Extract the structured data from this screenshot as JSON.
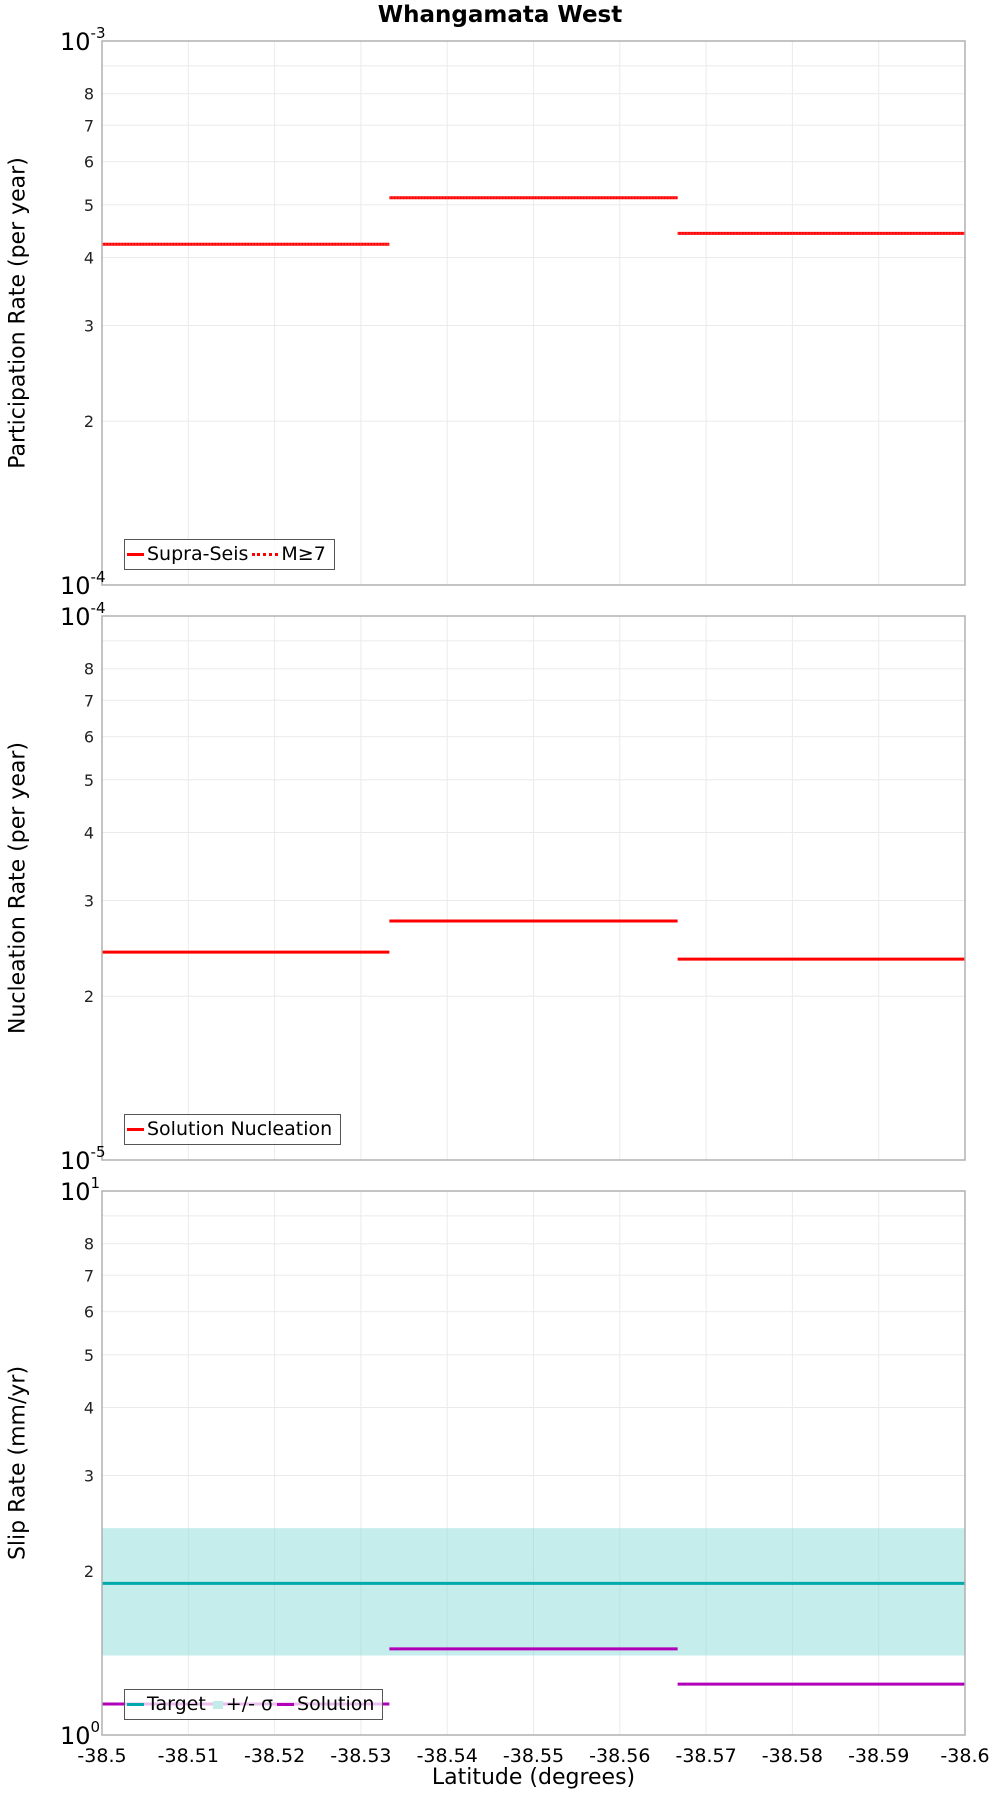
{
  "title": "Whangamata West",
  "xlabel": "Latitude (degrees)",
  "x_ticks": [
    "-38.5",
    "-38.51",
    "-38.52",
    "-38.53",
    "-38.54",
    "-38.55",
    "-38.56",
    "-38.57",
    "-38.58",
    "-38.59",
    "-38.6"
  ],
  "panels": [
    {
      "ylabel": "Participation Rate (per year)",
      "top_label": {
        "base": "10",
        "exp": "-3"
      },
      "bottom_label": {
        "base": "10",
        "exp": "-4"
      },
      "minor_labels": [
        "8",
        "7",
        "6",
        "5",
        "4",
        "3",
        "2"
      ],
      "legend": [
        {
          "label": "Supra-Seis",
          "style": "solid",
          "color": "#ff0000"
        },
        {
          "label": "M≥7",
          "style": "dotted",
          "color": "#ff0000"
        }
      ]
    },
    {
      "ylabel": "Nucleation Rate (per year)",
      "top_label": {
        "base": "10",
        "exp": "-4"
      },
      "bottom_label": {
        "base": "10",
        "exp": "-5"
      },
      "minor_labels": [
        "8",
        "7",
        "6",
        "5",
        "4",
        "3",
        "2"
      ],
      "legend": [
        {
          "label": "Solution Nucleation",
          "style": "solid",
          "color": "#ff0000"
        }
      ]
    },
    {
      "ylabel": "Slip Rate (mm/yr)",
      "top_label": {
        "base": "10",
        "exp": "1"
      },
      "bottom_label": {
        "base": "10",
        "exp": "0"
      },
      "minor_labels": [
        "8",
        "7",
        "6",
        "5",
        "4",
        "3",
        "2"
      ],
      "legend": [
        {
          "label": "Target",
          "style": "solid",
          "color": "#00aaaa"
        },
        {
          "label": "+/- σ",
          "style": "band",
          "color": "#c2ecea"
        },
        {
          "label": "Solution",
          "style": "solid",
          "color": "#b000b8"
        }
      ]
    }
  ],
  "chart_data": [
    {
      "type": "line",
      "title": "Whangamata West",
      "xlabel": "Latitude (degrees)",
      "ylabel": "Participation Rate (per year)",
      "yscale": "log",
      "xlim": [
        -38.5,
        -38.6
      ],
      "ylim": [
        0.0001,
        0.001
      ],
      "grid": true,
      "legend_position": "lower left",
      "series": [
        {
          "name": "Supra-Seis",
          "style": "solid",
          "color": "#ff0000",
          "segments": [
            {
              "x": [
                -38.5,
                -38.5333
              ],
              "y": 0.000423
            },
            {
              "x": [
                -38.5333,
                -38.5667
              ],
              "y": 0.000515
            },
            {
              "x": [
                -38.5667,
                -38.6
              ],
              "y": 0.000443
            }
          ]
        },
        {
          "name": "M≥7",
          "style": "dotted",
          "color": "#ff0000",
          "segments": [
            {
              "x": [
                -38.5,
                -38.5333
              ],
              "y": 0.000423
            },
            {
              "x": [
                -38.5333,
                -38.5667
              ],
              "y": 0.000515
            },
            {
              "x": [
                -38.5667,
                -38.6
              ],
              "y": 0.000443
            }
          ]
        }
      ]
    },
    {
      "type": "line",
      "xlabel": "Latitude (degrees)",
      "ylabel": "Nucleation Rate (per year)",
      "yscale": "log",
      "xlim": [
        -38.5,
        -38.6
      ],
      "ylim": [
        1e-05,
        0.0001
      ],
      "grid": true,
      "legend_position": "lower left",
      "series": [
        {
          "name": "Solution Nucleation",
          "style": "solid",
          "color": "#ff0000",
          "segments": [
            {
              "x": [
                -38.5,
                -38.5333
              ],
              "y": 2.41e-05
            },
            {
              "x": [
                -38.5333,
                -38.5667
              ],
              "y": 2.75e-05
            },
            {
              "x": [
                -38.5667,
                -38.6
              ],
              "y": 2.34e-05
            }
          ]
        }
      ]
    },
    {
      "type": "line",
      "xlabel": "Latitude (degrees)",
      "ylabel": "Slip Rate (mm/yr)",
      "yscale": "log",
      "xlim": [
        -38.5,
        -38.6
      ],
      "ylim": [
        1,
        10
      ],
      "grid": true,
      "legend_position": "lower left",
      "band": {
        "name": "+/- σ",
        "color": "#c2ecea",
        "x": [
          -38.5,
          -38.6
        ],
        "y_low": 1.4,
        "y_high": 2.4
      },
      "series": [
        {
          "name": "Target",
          "style": "solid",
          "color": "#00aaaa",
          "segments": [
            {
              "x": [
                -38.5,
                -38.6
              ],
              "y": 1.9
            }
          ]
        },
        {
          "name": "Solution",
          "style": "solid",
          "color": "#b000b8",
          "segments": [
            {
              "x": [
                -38.5,
                -38.5333
              ],
              "y": 1.14
            },
            {
              "x": [
                -38.5333,
                -38.5667
              ],
              "y": 1.44
            },
            {
              "x": [
                -38.5667,
                -38.6
              ],
              "y": 1.24
            }
          ]
        }
      ]
    }
  ]
}
